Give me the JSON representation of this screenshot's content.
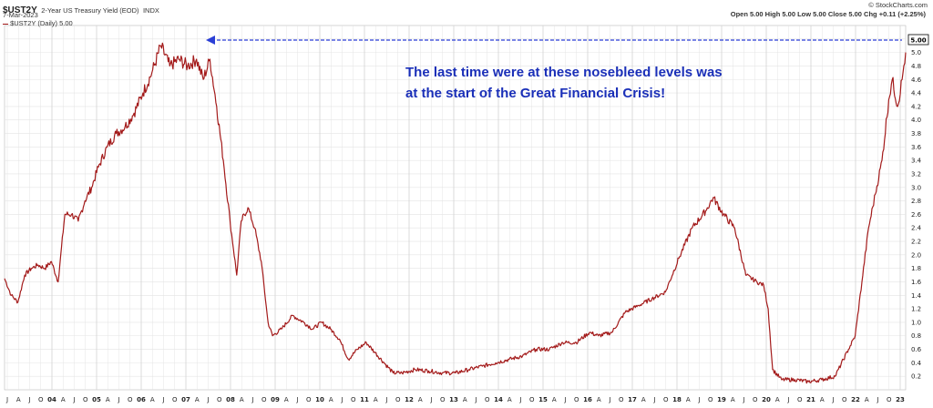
{
  "header": {
    "symbol": "$UST2Y",
    "description": "2-Year US Treasury Yield (EOD)",
    "exchange": "INDX",
    "date": "7-Mar-2023",
    "credit": "© StockCharts.com",
    "ohlc": "Open 5.00  High 5.00  Low 5.00  Close 5.00  Chg +0.11 (+2.25%)",
    "legend": "$UST2Y (Daily) 5.00"
  },
  "annotation": {
    "line1": "The last time were at these nosebleed levels was",
    "line2": "at the start of the Great Financial Crisis!"
  },
  "colors": {
    "series": "#a31a1a",
    "arrow": "#2b3fd6",
    "annotation": "#1a2fb8",
    "grid": "#e4e4e4"
  },
  "chart_data": {
    "type": "line",
    "x_start": 2003.0,
    "x_end": 2023.18,
    "ylim": [
      0,
      5.4
    ],
    "y_ticks": [
      0.2,
      0.4,
      0.6,
      0.8,
      1.0,
      1.2,
      1.4,
      1.6,
      1.8,
      2.0,
      2.2,
      2.4,
      2.6,
      2.8,
      3.0,
      3.2,
      3.4,
      3.6,
      3.8,
      4.0,
      4.2,
      4.4,
      4.6,
      4.8,
      5.0,
      5.2
    ],
    "last_value": "5.00",
    "x_labels": [
      "J",
      "A",
      "J",
      "O",
      "04",
      "A",
      "J",
      "O",
      "05",
      "A",
      "J",
      "O",
      "06",
      "A",
      "J",
      "O",
      "07",
      "A",
      "J",
      "O",
      "08",
      "A",
      "J",
      "O",
      "09",
      "A",
      "J",
      "O",
      "10",
      "A",
      "J",
      "O",
      "11",
      "A",
      "J",
      "O",
      "12",
      "A",
      "J",
      "O",
      "13",
      "A",
      "J",
      "O",
      "14",
      "A",
      "J",
      "O",
      "15",
      "A",
      "J",
      "O",
      "16",
      "A",
      "J",
      "O",
      "17",
      "A",
      "J",
      "O",
      "18",
      "A",
      "J",
      "O",
      "19",
      "A",
      "J",
      "O",
      "20",
      "A",
      "J",
      "O",
      "21",
      "A",
      "J",
      "O",
      "22",
      "A",
      "J",
      "O",
      "23"
    ],
    "x": [
      2003.0,
      2003.15,
      2003.3,
      2003.45,
      2003.6,
      2003.75,
      2003.9,
      2004.05,
      2004.2,
      2004.35,
      2004.5,
      2004.65,
      2004.8,
      2004.95,
      2005.1,
      2005.3,
      2005.5,
      2005.7,
      2005.9,
      2006.1,
      2006.3,
      2006.5,
      2006.7,
      2006.9,
      2007.1,
      2007.3,
      2007.45,
      2007.6,
      2007.75,
      2007.9,
      2008.05,
      2008.2,
      2008.3,
      2008.45,
      2008.6,
      2008.75,
      2008.9,
      2009.0,
      2009.2,
      2009.45,
      2009.7,
      2009.9,
      2010.1,
      2010.3,
      2010.5,
      2010.7,
      2010.9,
      2011.1,
      2011.3,
      2011.5,
      2011.7,
      2011.9,
      2012.2,
      2012.5,
      2012.8,
      2013.1,
      2013.4,
      2013.7,
      2014.0,
      2014.3,
      2014.6,
      2014.9,
      2015.2,
      2015.5,
      2015.8,
      2016.1,
      2016.3,
      2016.6,
      2016.9,
      2017.2,
      2017.5,
      2017.8,
      2018.1,
      2018.4,
      2018.7,
      2018.87,
      2019.1,
      2019.35,
      2019.6,
      2019.85,
      2020.0,
      2020.1,
      2020.2,
      2020.4,
      2020.7,
      2021.0,
      2021.3,
      2021.6,
      2021.9,
      2022.05,
      2022.2,
      2022.35,
      2022.5,
      2022.65,
      2022.8,
      2022.88,
      2023.0,
      2023.1,
      2023.18
    ],
    "y": [
      1.65,
      1.4,
      1.3,
      1.7,
      1.8,
      1.85,
      1.8,
      1.9,
      1.6,
      2.6,
      2.6,
      2.5,
      2.8,
      3.0,
      3.3,
      3.6,
      3.8,
      3.9,
      4.1,
      4.4,
      4.7,
      5.1,
      4.8,
      4.9,
      4.8,
      4.9,
      4.6,
      4.9,
      4.2,
      3.4,
      2.5,
      1.7,
      2.5,
      2.7,
      2.4,
      1.9,
      1.0,
      0.8,
      0.9,
      1.1,
      1.0,
      0.9,
      1.0,
      0.9,
      0.75,
      0.45,
      0.6,
      0.7,
      0.55,
      0.4,
      0.25,
      0.25,
      0.3,
      0.28,
      0.25,
      0.25,
      0.3,
      0.35,
      0.4,
      0.45,
      0.5,
      0.6,
      0.6,
      0.7,
      0.7,
      0.85,
      0.8,
      0.85,
      1.15,
      1.25,
      1.35,
      1.45,
      1.95,
      2.4,
      2.65,
      2.85,
      2.6,
      2.4,
      1.7,
      1.6,
      1.55,
      1.2,
      0.3,
      0.15,
      0.15,
      0.12,
      0.15,
      0.2,
      0.6,
      0.8,
      1.6,
      2.4,
      2.9,
      3.4,
      4.3,
      4.6,
      4.2,
      4.6,
      5.0
    ]
  }
}
